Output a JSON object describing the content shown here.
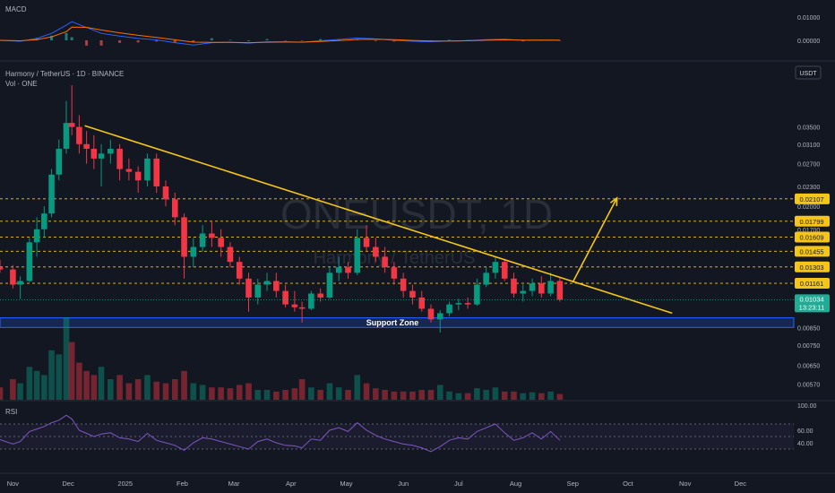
{
  "panes": {
    "macd": {
      "label": "MACD",
      "ticks": [
        {
          "v": 0.01,
          "t": "0.01000"
        },
        {
          "v": 0.0,
          "t": "0.00000"
        }
      ]
    },
    "price": {
      "symbol_line": "Harmony / TetherUS · 1D · BINANCE",
      "vol_line": "Vol · ONE",
      "currency": "USDT",
      "watermark_main": "ONEUSDT, 1D",
      "watermark_sub": "Harmony / TetherUS",
      "axis_ticks": [
        {
          "v": 0.035,
          "t": "0.03500"
        },
        {
          "v": 0.031,
          "t": "0.03100"
        },
        {
          "v": 0.027,
          "t": "0.02700"
        },
        {
          "v": 0.023,
          "t": "0.02300"
        },
        {
          "v": 0.02,
          "t": "0.02000"
        },
        {
          "v": 0.017,
          "t": "0.01700"
        },
        {
          "v": 0.0085,
          "t": "0.00850"
        },
        {
          "v": 0.0075,
          "t": "0.00750"
        },
        {
          "v": 0.0065,
          "t": "0.00650"
        },
        {
          "v": 0.0057,
          "t": "0.00570"
        }
      ],
      "level_badges": [
        "0.02107",
        "0.01799",
        "0.01609",
        "0.01455",
        "0.01303",
        "0.01161"
      ],
      "current_price": "0.01034",
      "countdown": "13:23:11",
      "support_zone_label": "Support Zone"
    },
    "rsi": {
      "label": "RSI",
      "ticks": [
        {
          "v": 100,
          "t": "100.00"
        },
        {
          "v": 60,
          "t": "60.00"
        },
        {
          "v": 40,
          "t": "40.00"
        }
      ]
    }
  },
  "time_axis": [
    "Nov",
    "Dec",
    "2025",
    "Feb",
    "Mar",
    "Apr",
    "May",
    "Jun",
    "Jul",
    "Aug",
    "Sep",
    "Oct",
    "Nov",
    "Dec"
  ],
  "colors": {
    "bg": "#131722",
    "up": "#089981",
    "down": "#f23645",
    "trend": "#f5c518",
    "support": "#2962ff",
    "rsi": "#7e57c2"
  },
  "chart_data": {
    "type": "candlestick",
    "symbol": "ONEUSDT",
    "timeframe": "1D",
    "exchange": "BINANCE",
    "scale": "log",
    "x_range": [
      "2024-10-25",
      "2025-12-31"
    ],
    "candles": [
      [
        "2024-10-25",
        0.013,
        0.0137,
        0.0125,
        0.0128
      ],
      [
        "2024-11-01",
        0.0128,
        0.0132,
        0.0112,
        0.0115
      ],
      [
        "2024-11-05",
        0.0115,
        0.0122,
        0.0104,
        0.0118
      ],
      [
        "2024-11-10",
        0.0118,
        0.016,
        0.0117,
        0.0155
      ],
      [
        "2024-11-14",
        0.0155,
        0.0185,
        0.014,
        0.017
      ],
      [
        "2024-11-18",
        0.017,
        0.02,
        0.016,
        0.019
      ],
      [
        "2024-11-22",
        0.019,
        0.026,
        0.0185,
        0.025
      ],
      [
        "2024-11-26",
        0.025,
        0.032,
        0.024,
        0.03
      ],
      [
        "2024-11-30",
        0.03,
        0.042,
        0.029,
        0.036
      ],
      [
        "2024-12-03",
        0.036,
        0.047,
        0.033,
        0.035
      ],
      [
        "2024-12-07",
        0.035,
        0.038,
        0.029,
        0.031
      ],
      [
        "2024-12-11",
        0.031,
        0.034,
        0.027,
        0.03
      ],
      [
        "2024-12-15",
        0.03,
        0.033,
        0.026,
        0.028
      ],
      [
        "2024-12-19",
        0.028,
        0.031,
        0.023,
        0.029
      ],
      [
        "2024-12-24",
        0.029,
        0.032,
        0.027,
        0.03
      ],
      [
        "2024-12-29",
        0.03,
        0.031,
        0.024,
        0.026
      ],
      [
        "2025-01-03",
        0.026,
        0.028,
        0.024,
        0.0255
      ],
      [
        "2025-01-08",
        0.0255,
        0.0265,
        0.022,
        0.024
      ],
      [
        "2025-01-13",
        0.024,
        0.029,
        0.023,
        0.028
      ],
      [
        "2025-01-18",
        0.028,
        0.029,
        0.022,
        0.023
      ],
      [
        "2025-01-23",
        0.023,
        0.024,
        0.02,
        0.021
      ],
      [
        "2025-01-28",
        0.021,
        0.022,
        0.0175,
        0.0185
      ],
      [
        "2025-02-02",
        0.0185,
        0.019,
        0.012,
        0.014
      ],
      [
        "2025-02-07",
        0.014,
        0.016,
        0.013,
        0.015
      ],
      [
        "2025-02-12",
        0.015,
        0.0175,
        0.0145,
        0.0165
      ],
      [
        "2025-02-17",
        0.0165,
        0.018,
        0.015,
        0.016
      ],
      [
        "2025-02-22",
        0.016,
        0.017,
        0.014,
        0.015
      ],
      [
        "2025-02-27",
        0.015,
        0.0155,
        0.013,
        0.0135
      ],
      [
        "2025-03-04",
        0.0135,
        0.014,
        0.0115,
        0.012
      ],
      [
        "2025-03-09",
        0.012,
        0.0125,
        0.0095,
        0.0105
      ],
      [
        "2025-03-14",
        0.0105,
        0.012,
        0.01,
        0.0115
      ],
      [
        "2025-03-19",
        0.0115,
        0.0125,
        0.011,
        0.0118
      ],
      [
        "2025-03-24",
        0.0118,
        0.0125,
        0.0105,
        0.011
      ],
      [
        "2025-03-29",
        0.011,
        0.0115,
        0.0098,
        0.01
      ],
      [
        "2025-04-03",
        0.01,
        0.011,
        0.0095,
        0.0098
      ],
      [
        "2025-04-07",
        0.0098,
        0.0102,
        0.0088,
        0.0097
      ],
      [
        "2025-04-12",
        0.0097,
        0.011,
        0.0096,
        0.0108
      ],
      [
        "2025-04-17",
        0.0108,
        0.0112,
        0.0102,
        0.0105
      ],
      [
        "2025-04-22",
        0.0105,
        0.013,
        0.0104,
        0.0125
      ],
      [
        "2025-04-27",
        0.0125,
        0.014,
        0.0118,
        0.013
      ],
      [
        "2025-05-02",
        0.013,
        0.0135,
        0.012,
        0.0125
      ],
      [
        "2025-05-07",
        0.0125,
        0.017,
        0.0123,
        0.016
      ],
      [
        "2025-05-12",
        0.016,
        0.0175,
        0.0145,
        0.015
      ],
      [
        "2025-05-17",
        0.015,
        0.016,
        0.0135,
        0.014
      ],
      [
        "2025-05-22",
        0.014,
        0.015,
        0.0125,
        0.013
      ],
      [
        "2025-05-27",
        0.013,
        0.0135,
        0.0115,
        0.012
      ],
      [
        "2025-06-01",
        0.012,
        0.0125,
        0.0105,
        0.011
      ],
      [
        "2025-06-06",
        0.011,
        0.0115,
        0.01,
        0.0105
      ],
      [
        "2025-06-11",
        0.0105,
        0.011,
        0.0095,
        0.0097
      ],
      [
        "2025-06-16",
        0.0097,
        0.01,
        0.0088,
        0.009
      ],
      [
        "2025-06-21",
        0.009,
        0.0096,
        0.0082,
        0.0094
      ],
      [
        "2025-06-26",
        0.0094,
        0.0102,
        0.0092,
        0.01
      ],
      [
        "2025-07-01",
        0.01,
        0.0104,
        0.0096,
        0.0101
      ],
      [
        "2025-07-06",
        0.0101,
        0.0105,
        0.0097,
        0.01
      ],
      [
        "2025-07-11",
        0.01,
        0.012,
        0.0099,
        0.0115
      ],
      [
        "2025-07-16",
        0.0115,
        0.013,
        0.0113,
        0.0125
      ],
      [
        "2025-07-21",
        0.0125,
        0.014,
        0.012,
        0.0135
      ],
      [
        "2025-07-26",
        0.0135,
        0.0138,
        0.0118,
        0.012
      ],
      [
        "2025-07-31",
        0.012,
        0.0125,
        0.0105,
        0.0108
      ],
      [
        "2025-08-05",
        0.0108,
        0.0115,
        0.0102,
        0.011
      ],
      [
        "2025-08-10",
        0.011,
        0.012,
        0.0106,
        0.0116
      ],
      [
        "2025-08-15",
        0.0116,
        0.0122,
        0.0105,
        0.0108
      ],
      [
        "2025-08-20",
        0.0108,
        0.0125,
        0.0106,
        0.0118
      ],
      [
        "2025-08-25",
        0.0118,
        0.0121,
        0.0102,
        0.01034
      ]
    ],
    "horizontal_levels": [
      0.02107,
      0.01799,
      0.01609,
      0.01455,
      0.01303,
      0.01161
    ],
    "current_price": 0.01034,
    "support_zone": {
      "label": "Support Zone",
      "low": 0.0085,
      "high": 0.0091
    },
    "trendline": {
      "start": [
        "2024-12-10",
        0.0353
      ],
      "end": [
        "2025-10-25",
        0.0094
      ]
    },
    "projection_arrow": {
      "start": [
        "2025-09-01",
        0.0117
      ],
      "end": [
        "2025-09-25",
        0.0212
      ]
    },
    "volume": [
      [
        "2024-10-25",
        0.15
      ],
      [
        "2024-11-01",
        0.25
      ],
      [
        "2024-11-05",
        0.2
      ],
      [
        "2024-11-10",
        0.4
      ],
      [
        "2024-11-14",
        0.35
      ],
      [
        "2024-11-18",
        0.3
      ],
      [
        "2024-11-22",
        0.6
      ],
      [
        "2024-11-26",
        0.55
      ],
      [
        "2024-11-30",
        1.0
      ],
      [
        "2024-12-03",
        0.7
      ],
      [
        "2024-12-07",
        0.45
      ],
      [
        "2024-12-11",
        0.35
      ],
      [
        "2024-12-15",
        0.3
      ],
      [
        "2024-12-19",
        0.4
      ],
      [
        "2024-12-24",
        0.25
      ],
      [
        "2024-12-29",
        0.3
      ],
      [
        "2025-01-03",
        0.2
      ],
      [
        "2025-01-08",
        0.25
      ],
      [
        "2025-01-13",
        0.3
      ],
      [
        "2025-01-18",
        0.22
      ],
      [
        "2025-01-23",
        0.2
      ],
      [
        "2025-01-28",
        0.25
      ],
      [
        "2025-02-02",
        0.35
      ],
      [
        "2025-02-07",
        0.2
      ],
      [
        "2025-02-12",
        0.18
      ],
      [
        "2025-02-17",
        0.15
      ],
      [
        "2025-02-22",
        0.15
      ],
      [
        "2025-02-27",
        0.14
      ],
      [
        "2025-03-04",
        0.18
      ],
      [
        "2025-03-09",
        0.2
      ],
      [
        "2025-03-14",
        0.12
      ],
      [
        "2025-03-19",
        0.12
      ],
      [
        "2025-03-24",
        0.1
      ],
      [
        "2025-03-29",
        0.12
      ],
      [
        "2025-04-03",
        0.14
      ],
      [
        "2025-04-07",
        0.25
      ],
      [
        "2025-04-12",
        0.15
      ],
      [
        "2025-04-17",
        0.12
      ],
      [
        "2025-04-22",
        0.2
      ],
      [
        "2025-04-27",
        0.15
      ],
      [
        "2025-05-02",
        0.12
      ],
      [
        "2025-05-07",
        0.3
      ],
      [
        "2025-05-12",
        0.2
      ],
      [
        "2025-05-17",
        0.14
      ],
      [
        "2025-05-22",
        0.12
      ],
      [
        "2025-05-27",
        0.1
      ],
      [
        "2025-06-01",
        0.1
      ],
      [
        "2025-06-06",
        0.1
      ],
      [
        "2025-06-11",
        0.12
      ],
      [
        "2025-06-16",
        0.12
      ],
      [
        "2025-06-21",
        0.18
      ],
      [
        "2025-06-26",
        0.1
      ],
      [
        "2025-07-01",
        0.08
      ],
      [
        "2025-07-06",
        0.08
      ],
      [
        "2025-07-11",
        0.14
      ],
      [
        "2025-07-16",
        0.12
      ],
      [
        "2025-07-21",
        0.15
      ],
      [
        "2025-07-26",
        0.1
      ],
      [
        "2025-07-31",
        0.1
      ],
      [
        "2025-08-05",
        0.08
      ],
      [
        "2025-08-10",
        0.09
      ],
      [
        "2025-08-15",
        0.08
      ],
      [
        "2025-08-20",
        0.1
      ],
      [
        "2025-08-25",
        0.07
      ]
    ],
    "rsi_levels": [
      70,
      50,
      30
    ],
    "rsi": [
      [
        "2024-10-25",
        45
      ],
      [
        "2024-11-01",
        38
      ],
      [
        "2024-11-05",
        42
      ],
      [
        "2024-11-10",
        58
      ],
      [
        "2024-11-14",
        62
      ],
      [
        "2024-11-18",
        66
      ],
      [
        "2024-11-22",
        72
      ],
      [
        "2024-11-26",
        76
      ],
      [
        "2024-11-30",
        84
      ],
      [
        "2024-12-03",
        78
      ],
      [
        "2024-12-07",
        60
      ],
      [
        "2024-12-11",
        55
      ],
      [
        "2024-12-15",
        50
      ],
      [
        "2024-12-19",
        54
      ],
      [
        "2024-12-24",
        56
      ],
      [
        "2024-12-29",
        48
      ],
      [
        "2025-01-03",
        46
      ],
      [
        "2025-01-08",
        42
      ],
      [
        "2025-01-13",
        55
      ],
      [
        "2025-01-18",
        44
      ],
      [
        "2025-01-23",
        40
      ],
      [
        "2025-01-28",
        36
      ],
      [
        "2025-02-02",
        28
      ],
      [
        "2025-02-07",
        40
      ],
      [
        "2025-02-12",
        48
      ],
      [
        "2025-02-17",
        46
      ],
      [
        "2025-02-22",
        42
      ],
      [
        "2025-02-27",
        38
      ],
      [
        "2025-03-04",
        34
      ],
      [
        "2025-03-09",
        30
      ],
      [
        "2025-03-14",
        42
      ],
      [
        "2025-03-19",
        46
      ],
      [
        "2025-03-24",
        40
      ],
      [
        "2025-03-29",
        36
      ],
      [
        "2025-04-03",
        35
      ],
      [
        "2025-04-07",
        32
      ],
      [
        "2025-04-12",
        46
      ],
      [
        "2025-04-17",
        44
      ],
      [
        "2025-04-22",
        60
      ],
      [
        "2025-04-27",
        64
      ],
      [
        "2025-05-02",
        58
      ],
      [
        "2025-05-07",
        72
      ],
      [
        "2025-05-12",
        60
      ],
      [
        "2025-05-17",
        52
      ],
      [
        "2025-05-22",
        46
      ],
      [
        "2025-05-27",
        42
      ],
      [
        "2025-06-01",
        38
      ],
      [
        "2025-06-06",
        36
      ],
      [
        "2025-06-11",
        32
      ],
      [
        "2025-06-16",
        26
      ],
      [
        "2025-06-21",
        34
      ],
      [
        "2025-06-26",
        44
      ],
      [
        "2025-07-01",
        48
      ],
      [
        "2025-07-06",
        46
      ],
      [
        "2025-07-11",
        58
      ],
      [
        "2025-07-16",
        64
      ],
      [
        "2025-07-21",
        70
      ],
      [
        "2025-07-26",
        56
      ],
      [
        "2025-07-31",
        44
      ],
      [
        "2025-08-05",
        48
      ],
      [
        "2025-08-10",
        56
      ],
      [
        "2025-08-15",
        46
      ],
      [
        "2025-08-20",
        58
      ],
      [
        "2025-08-25",
        44
      ]
    ],
    "macd": [
      [
        "2024-10-25",
        0.0
      ],
      [
        "2024-11-05",
        -0.0004
      ],
      [
        "2024-11-14",
        0.0008
      ],
      [
        "2024-11-22",
        0.003
      ],
      [
        "2024-11-30",
        0.0065
      ],
      [
        "2024-12-03",
        0.008
      ],
      [
        "2024-12-11",
        0.0055
      ],
      [
        "2024-12-19",
        0.003
      ],
      [
        "2024-12-29",
        0.0018
      ],
      [
        "2025-01-08",
        0.0008
      ],
      [
        "2025-01-18",
        0.0002
      ],
      [
        "2025-01-28",
        -0.001
      ],
      [
        "2025-02-07",
        -0.002
      ],
      [
        "2025-02-17",
        -0.001
      ],
      [
        "2025-02-27",
        -0.0008
      ],
      [
        "2025-03-09",
        -0.0012
      ],
      [
        "2025-03-19",
        -0.0006
      ],
      [
        "2025-03-29",
        -0.0006
      ],
      [
        "2025-04-07",
        -0.0008
      ],
      [
        "2025-04-17",
        -0.0002
      ],
      [
        "2025-04-27",
        0.0004
      ],
      [
        "2025-05-07",
        0.001
      ],
      [
        "2025-05-17",
        0.0006
      ],
      [
        "2025-05-27",
        0.0
      ],
      [
        "2025-06-06",
        -0.0004
      ],
      [
        "2025-06-16",
        -0.0006
      ],
      [
        "2025-06-26",
        -0.0003
      ],
      [
        "2025-07-06",
        -0.0001
      ],
      [
        "2025-07-16",
        0.0003
      ],
      [
        "2025-07-26",
        0.0005
      ],
      [
        "2025-08-05",
        0.0
      ],
      [
        "2025-08-15",
        0.0001
      ],
      [
        "2025-08-25",
        0.0
      ]
    ]
  }
}
